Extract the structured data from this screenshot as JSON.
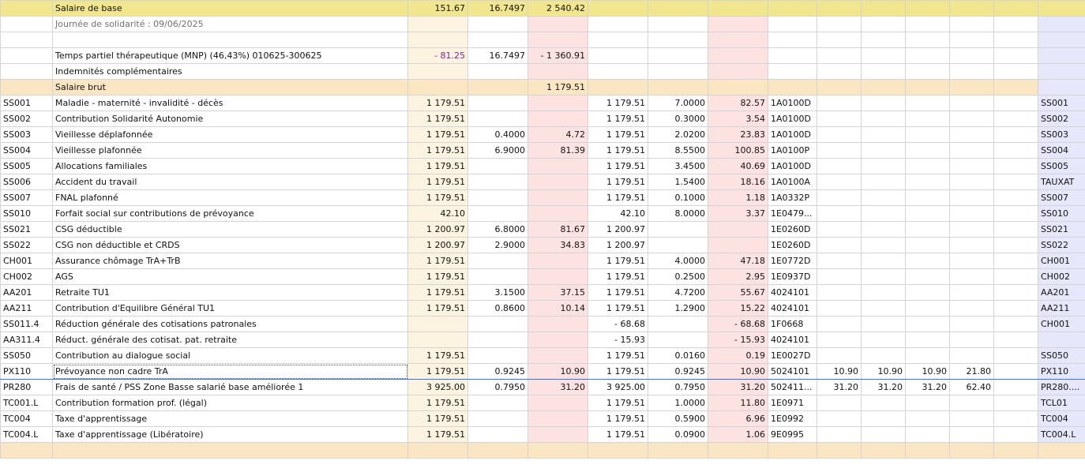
{
  "columns": [
    "code",
    "label",
    "base",
    "sal_taux",
    "sal_mont",
    "pat_base",
    "pat_taux",
    "pat_mont",
    "compte",
    "c1",
    "c2",
    "c3",
    "c4",
    "c5",
    "code2"
  ],
  "rows": [
    {
      "type": "yellow",
      "code": "",
      "label": "Salaire de base",
      "base": "151.67",
      "sal_taux": "16.7497",
      "sal_mont": "2 540.42",
      "pat_base": "",
      "pat_taux": "",
      "pat_mont": "",
      "compte": "",
      "c1": "",
      "c2": "",
      "c3": "",
      "c4": "",
      "c5": "",
      "code2": ""
    },
    {
      "type": "sub",
      "code": "",
      "label": "Journée de solidarité : 09/06/2025",
      "base": "",
      "sal_taux": "",
      "sal_mont": "",
      "pat_base": "",
      "pat_taux": "",
      "pat_mont": "",
      "compte": "",
      "c1": "",
      "c2": "",
      "c3": "",
      "c4": "",
      "c5": "",
      "code2": ""
    },
    {
      "type": "normal",
      "code": "",
      "label": "",
      "base": "",
      "sal_taux": "",
      "sal_mont": "",
      "pat_base": "",
      "pat_taux": "",
      "pat_mont": "",
      "compte": "",
      "c1": "",
      "c2": "",
      "c3": "",
      "c4": "",
      "c5": "",
      "code2": ""
    },
    {
      "type": "normal",
      "code": "",
      "label": "Temps partiel thérapeutique (MNP) (46,43%) 010625-300625",
      "base": "- 81.25",
      "sal_taux": "16.7497",
      "sal_mont": "- 1 360.91",
      "pat_base": "",
      "pat_taux": "",
      "pat_mont": "",
      "compte": "",
      "c1": "",
      "c2": "",
      "c3": "",
      "c4": "",
      "c5": "",
      "code2": "",
      "base_purple": true
    },
    {
      "type": "normal",
      "code": "",
      "label": "Indemnités complémentaires",
      "base": "",
      "sal_taux": "",
      "sal_mont": "",
      "pat_base": "",
      "pat_taux": "",
      "pat_mont": "",
      "compte": "",
      "c1": "",
      "c2": "",
      "c3": "",
      "c4": "",
      "c5": "",
      "code2": ""
    },
    {
      "type": "brut",
      "code": "",
      "label": "Salaire brut",
      "base": "",
      "sal_taux": "",
      "sal_mont": "1 179.51",
      "pat_base": "",
      "pat_taux": "",
      "pat_mont": "",
      "compte": "",
      "c1": "",
      "c2": "",
      "c3": "",
      "c4": "",
      "c5": "",
      "code2": ""
    },
    {
      "type": "normal",
      "code": "SS001",
      "label": "Maladie - maternité - invalidité - décès",
      "base": "1 179.51",
      "sal_taux": "",
      "sal_mont": "",
      "pat_base": "1 179.51",
      "pat_taux": "7.0000",
      "pat_mont": "82.57",
      "compte": "1A0100D",
      "c1": "",
      "c2": "",
      "c3": "",
      "c4": "",
      "c5": "",
      "code2": "SS001"
    },
    {
      "type": "normal",
      "code": "SS002",
      "label": "Contribution Solidarité Autonomie",
      "base": "1 179.51",
      "sal_taux": "",
      "sal_mont": "",
      "pat_base": "1 179.51",
      "pat_taux": "0.3000",
      "pat_mont": "3.54",
      "compte": "1A0100D",
      "c1": "",
      "c2": "",
      "c3": "",
      "c4": "",
      "c5": "",
      "code2": "SS002"
    },
    {
      "type": "normal",
      "code": "SS003",
      "label": "Vieillesse déplafonnée",
      "base": "1 179.51",
      "sal_taux": "0.4000",
      "sal_mont": "4.72",
      "pat_base": "1 179.51",
      "pat_taux": "2.0200",
      "pat_mont": "23.83",
      "compte": "1A0100D",
      "c1": "",
      "c2": "",
      "c3": "",
      "c4": "",
      "c5": "",
      "code2": "SS003"
    },
    {
      "type": "normal",
      "code": "SS004",
      "label": "Vieillesse plafonnée",
      "base": "1 179.51",
      "sal_taux": "6.9000",
      "sal_mont": "81.39",
      "pat_base": "1 179.51",
      "pat_taux": "8.5500",
      "pat_mont": "100.85",
      "compte": "1A0100P",
      "c1": "",
      "c2": "",
      "c3": "",
      "c4": "",
      "c5": "",
      "code2": "SS004"
    },
    {
      "type": "normal",
      "code": "SS005",
      "label": "Allocations familiales",
      "base": "1 179.51",
      "sal_taux": "",
      "sal_mont": "",
      "pat_base": "1 179.51",
      "pat_taux": "3.4500",
      "pat_mont": "40.69",
      "compte": "1A0100D",
      "c1": "",
      "c2": "",
      "c3": "",
      "c4": "",
      "c5": "",
      "code2": "SS005"
    },
    {
      "type": "normal",
      "code": "SS006",
      "label": "Accident du travail",
      "base": "1 179.51",
      "sal_taux": "",
      "sal_mont": "",
      "pat_base": "1 179.51",
      "pat_taux": "1.5400",
      "pat_mont": "18.16",
      "compte": "1A0100A",
      "c1": "",
      "c2": "",
      "c3": "",
      "c4": "",
      "c5": "",
      "code2": "TAUXAT"
    },
    {
      "type": "normal",
      "code": "SS007",
      "label": "FNAL plafonné",
      "base": "1 179.51",
      "sal_taux": "",
      "sal_mont": "",
      "pat_base": "1 179.51",
      "pat_taux": "0.1000",
      "pat_mont": "1.18",
      "compte": "1A0332P",
      "c1": "",
      "c2": "",
      "c3": "",
      "c4": "",
      "c5": "",
      "code2": "SS007"
    },
    {
      "type": "normal",
      "code": "SS010",
      "label": "Forfait social sur contributions de prévoyance",
      "base": "42.10",
      "sal_taux": "",
      "sal_mont": "",
      "pat_base": "42.10",
      "pat_taux": "8.0000",
      "pat_mont": "3.37",
      "compte": "1E0479...",
      "c1": "",
      "c2": "",
      "c3": "",
      "c4": "",
      "c5": "",
      "code2": "SS010"
    },
    {
      "type": "normal",
      "code": "SS021",
      "label": "CSG déductible",
      "base": "1 200.97",
      "sal_taux": "6.8000",
      "sal_mont": "81.67",
      "pat_base": "1 200.97",
      "pat_taux": "",
      "pat_mont": "",
      "compte": "1E0260D",
      "c1": "",
      "c2": "",
      "c3": "",
      "c4": "",
      "c5": "",
      "code2": "SS021"
    },
    {
      "type": "normal",
      "code": "SS022",
      "label": "CSG non déductible et CRDS",
      "base": "1 200.97",
      "sal_taux": "2.9000",
      "sal_mont": "34.83",
      "pat_base": "1 200.97",
      "pat_taux": "",
      "pat_mont": "",
      "compte": "1E0260D",
      "c1": "",
      "c2": "",
      "c3": "",
      "c4": "",
      "c5": "",
      "code2": "SS022"
    },
    {
      "type": "normal",
      "code": "CH001",
      "label": "Assurance chômage TrA+TrB",
      "base": "1 179.51",
      "sal_taux": "",
      "sal_mont": "",
      "pat_base": "1 179.51",
      "pat_taux": "4.0000",
      "pat_mont": "47.18",
      "compte": "1E0772D",
      "c1": "",
      "c2": "",
      "c3": "",
      "c4": "",
      "c5": "",
      "code2": "CH001"
    },
    {
      "type": "normal",
      "code": "CH002",
      "label": "AGS",
      "base": "1 179.51",
      "sal_taux": "",
      "sal_mont": "",
      "pat_base": "1 179.51",
      "pat_taux": "0.2500",
      "pat_mont": "2.95",
      "compte": "1E0937D",
      "c1": "",
      "c2": "",
      "c3": "",
      "c4": "",
      "c5": "",
      "code2": "CH002"
    },
    {
      "type": "normal",
      "code": "AA201",
      "label": "Retraite TU1",
      "base": "1 179.51",
      "sal_taux": "3.1500",
      "sal_mont": "37.15",
      "pat_base": "1 179.51",
      "pat_taux": "4.7200",
      "pat_mont": "55.67",
      "compte": "4024101",
      "c1": "",
      "c2": "",
      "c3": "",
      "c4": "",
      "c5": "",
      "code2": "AA201"
    },
    {
      "type": "normal",
      "code": "AA211",
      "label": "Contribution d'Equilibre Général TU1",
      "base": "1 179.51",
      "sal_taux": "0.8600",
      "sal_mont": "10.14",
      "pat_base": "1 179.51",
      "pat_taux": "1.2900",
      "pat_mont": "15.22",
      "compte": "4024101",
      "c1": "",
      "c2": "",
      "c3": "",
      "c4": "",
      "c5": "",
      "code2": "AA211"
    },
    {
      "type": "normal",
      "code": "SS011.4",
      "label": "Réduction générale des cotisations patronales",
      "base": "",
      "sal_taux": "",
      "sal_mont": "",
      "pat_base": "- 68.68",
      "pat_taux": "",
      "pat_mont": "- 68.68",
      "compte": "1F0668",
      "c1": "",
      "c2": "",
      "c3": "",
      "c4": "",
      "c5": "",
      "code2": "CH001"
    },
    {
      "type": "normal",
      "code": "AA311.4",
      "label": "Réduct. générale des cotisat. pat. retraite",
      "base": "",
      "sal_taux": "",
      "sal_mont": "",
      "pat_base": "- 15.93",
      "pat_taux": "",
      "pat_mont": "- 15.93",
      "compte": "4024101",
      "c1": "",
      "c2": "",
      "c3": "",
      "c4": "",
      "c5": "",
      "code2": ""
    },
    {
      "type": "normal",
      "code": "SS050",
      "label": "Contribution au dialogue social",
      "base": "1 179.51",
      "sal_taux": "",
      "sal_mont": "",
      "pat_base": "1 179.51",
      "pat_taux": "0.0160",
      "pat_mont": "0.19",
      "compte": "1E0027D",
      "c1": "",
      "c2": "",
      "c3": "",
      "c4": "",
      "c5": "",
      "code2": "SS050"
    },
    {
      "type": "selected",
      "code": "PX110",
      "label": "Prévoyance non cadre TrA",
      "base": "1 179.51",
      "sal_taux": "0.9245",
      "sal_mont": "10.90",
      "pat_base": "1 179.51",
      "pat_taux": "0.9245",
      "pat_mont": "10.90",
      "compte": "5024101",
      "c1": "10.90",
      "c2": "10.90",
      "c3": "10.90",
      "c4": "21.80",
      "c5": "",
      "code2": "PX110"
    },
    {
      "type": "normal",
      "code": "PR280",
      "label": "Frais de santé / PSS Zone Basse salarié base améliorée 1",
      "base": "3 925.00",
      "sal_taux": "0.7950",
      "sal_mont": "31.20",
      "pat_base": "3 925.00",
      "pat_taux": "0.7950",
      "pat_mont": "31.20",
      "compte": "502411...",
      "c1": "31.20",
      "c2": "31.20",
      "c3": "31.20",
      "c4": "62.40",
      "c5": "",
      "code2": "PR280...."
    },
    {
      "type": "normal",
      "code": "TC001.L",
      "label": "Contribution formation prof. (légal)",
      "base": "1 179.51",
      "sal_taux": "",
      "sal_mont": "",
      "pat_base": "1 179.51",
      "pat_taux": "1.0000",
      "pat_mont": "11.80",
      "compte": "1E0971",
      "c1": "",
      "c2": "",
      "c3": "",
      "c4": "",
      "c5": "",
      "code2": "TCL01"
    },
    {
      "type": "normal",
      "code": "TC004",
      "label": "Taxe d'apprentissage",
      "base": "1 179.51",
      "sal_taux": "",
      "sal_mont": "",
      "pat_base": "1 179.51",
      "pat_taux": "0.5900",
      "pat_mont": "6.96",
      "compte": "1E0992",
      "c1": "",
      "c2": "",
      "c3": "",
      "c4": "",
      "c5": "",
      "code2": "TC004"
    },
    {
      "type": "normal",
      "code": "TC004.L",
      "label": "Taxe d'apprentissage (Libératoire)",
      "base": "1 179.51",
      "sal_taux": "",
      "sal_mont": "",
      "pat_base": "1 179.51",
      "pat_taux": "0.0900",
      "pat_mont": "1.06",
      "compte": "9E0995",
      "c1": "",
      "c2": "",
      "c3": "",
      "c4": "",
      "c5": "",
      "code2": "TC004.L"
    },
    {
      "type": "total",
      "code": "",
      "label": "",
      "base": "",
      "sal_taux": "",
      "sal_mont": "",
      "pat_base": "",
      "pat_taux": "",
      "pat_mont": "",
      "compte": "",
      "c1": "",
      "c2": "",
      "c3": "",
      "c4": "",
      "c5": "",
      "code2": ""
    }
  ]
}
